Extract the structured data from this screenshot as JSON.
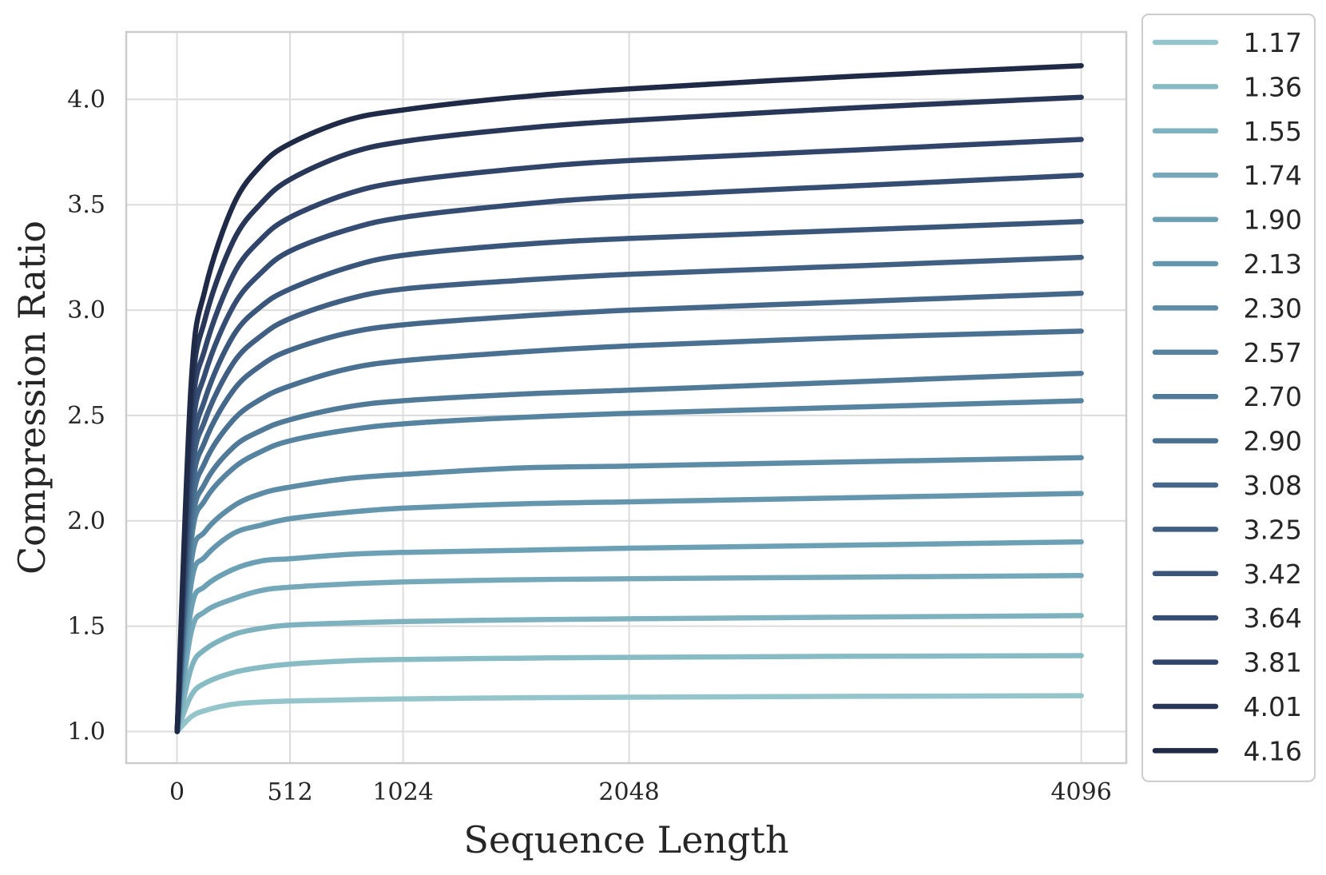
{
  "chart_data": {
    "type": "line",
    "title": "",
    "xlabel": "Sequence Length",
    "ylabel": "Compression Ratio",
    "xlim": [
      -230,
      4300
    ],
    "ylim": [
      0.85,
      4.32
    ],
    "x_ticks": [
      0,
      512,
      1024,
      2048,
      4096
    ],
    "x_tick_labels": [
      "0",
      "512",
      "1024",
      "2048",
      "4096"
    ],
    "y_ticks": [
      1.0,
      1.5,
      2.0,
      2.5,
      3.0,
      3.5,
      4.0
    ],
    "y_tick_labels": [
      "1.0",
      "1.5",
      "2.0",
      "2.5",
      "3.0",
      "3.5",
      "4.0"
    ],
    "grid": true,
    "legend_position": "outside-right",
    "x": [
      1,
      64,
      128,
      256,
      384,
      512,
      768,
      1024,
      1536,
      2048,
      3072,
      4096
    ],
    "series": [
      {
        "name": "1.17",
        "color": "#94c5ca",
        "values": [
          1.0,
          1.07,
          1.1,
          1.13,
          1.14,
          1.145,
          1.15,
          1.155,
          1.16,
          1.163,
          1.167,
          1.17
        ]
      },
      {
        "name": "1.36",
        "color": "#88bcc4",
        "values": [
          1.0,
          1.17,
          1.23,
          1.28,
          1.305,
          1.32,
          1.335,
          1.342,
          1.348,
          1.352,
          1.357,
          1.36
        ]
      },
      {
        "name": "1.55",
        "color": "#7eb2bf",
        "values": [
          1.0,
          1.3,
          1.39,
          1.46,
          1.49,
          1.505,
          1.515,
          1.522,
          1.53,
          1.535,
          1.543,
          1.55
        ]
      },
      {
        "name": "1.74",
        "color": "#75a9ba",
        "values": [
          1.0,
          1.47,
          1.57,
          1.63,
          1.67,
          1.685,
          1.7,
          1.71,
          1.72,
          1.725,
          1.733,
          1.74
        ]
      },
      {
        "name": "1.90",
        "color": "#6ca0b4",
        "values": [
          1.0,
          1.58,
          1.69,
          1.77,
          1.81,
          1.82,
          1.84,
          1.85,
          1.86,
          1.87,
          1.885,
          1.9
        ]
      },
      {
        "name": "2.13",
        "color": "#6496ad",
        "values": [
          1.0,
          1.7,
          1.83,
          1.94,
          1.98,
          2.01,
          2.04,
          2.06,
          2.08,
          2.09,
          2.11,
          2.13
        ]
      },
      {
        "name": "2.30",
        "color": "#5c8ca6",
        "values": [
          1.0,
          1.8,
          1.95,
          2.07,
          2.13,
          2.16,
          2.2,
          2.22,
          2.25,
          2.26,
          2.28,
          2.3
        ]
      },
      {
        "name": "2.57",
        "color": "#56839f",
        "values": [
          1.0,
          1.9,
          2.1,
          2.25,
          2.33,
          2.38,
          2.43,
          2.46,
          2.49,
          2.51,
          2.54,
          2.57
        ]
      },
      {
        "name": "2.70",
        "color": "#507a98",
        "values": [
          1.0,
          1.95,
          2.18,
          2.35,
          2.43,
          2.48,
          2.54,
          2.57,
          2.6,
          2.62,
          2.66,
          2.7
        ]
      },
      {
        "name": "2.90",
        "color": "#4a7191",
        "values": [
          1.0,
          2.02,
          2.28,
          2.48,
          2.58,
          2.64,
          2.72,
          2.76,
          2.8,
          2.83,
          2.87,
          2.9
        ]
      },
      {
        "name": "3.08",
        "color": "#45688a",
        "values": [
          1.0,
          2.1,
          2.38,
          2.62,
          2.74,
          2.81,
          2.89,
          2.93,
          2.97,
          3.0,
          3.04,
          3.08
        ]
      },
      {
        "name": "3.25",
        "color": "#405f82",
        "values": [
          1.0,
          2.18,
          2.48,
          2.75,
          2.88,
          2.96,
          3.05,
          3.1,
          3.14,
          3.17,
          3.21,
          3.25
        ]
      },
      {
        "name": "3.42",
        "color": "#3b567b",
        "values": [
          1.0,
          2.25,
          2.58,
          2.88,
          3.02,
          3.1,
          3.2,
          3.26,
          3.31,
          3.34,
          3.38,
          3.42
        ]
      },
      {
        "name": "3.64",
        "color": "#364d73",
        "values": [
          1.0,
          2.35,
          2.7,
          3.02,
          3.18,
          3.28,
          3.38,
          3.44,
          3.5,
          3.54,
          3.59,
          3.64
        ]
      },
      {
        "name": "3.81",
        "color": "#31456b",
        "values": [
          1.0,
          2.45,
          2.82,
          3.17,
          3.34,
          3.44,
          3.55,
          3.61,
          3.67,
          3.71,
          3.76,
          3.81
        ]
      },
      {
        "name": "4.01",
        "color": "#283658",
        "values": [
          1.0,
          2.55,
          2.96,
          3.33,
          3.51,
          3.62,
          3.74,
          3.8,
          3.86,
          3.9,
          3.96,
          4.01
        ]
      },
      {
        "name": "4.16",
        "color": "#1f2a47",
        "values": [
          1.0,
          2.65,
          3.1,
          3.5,
          3.69,
          3.79,
          3.9,
          3.95,
          4.01,
          4.05,
          4.11,
          4.16
        ]
      }
    ]
  }
}
